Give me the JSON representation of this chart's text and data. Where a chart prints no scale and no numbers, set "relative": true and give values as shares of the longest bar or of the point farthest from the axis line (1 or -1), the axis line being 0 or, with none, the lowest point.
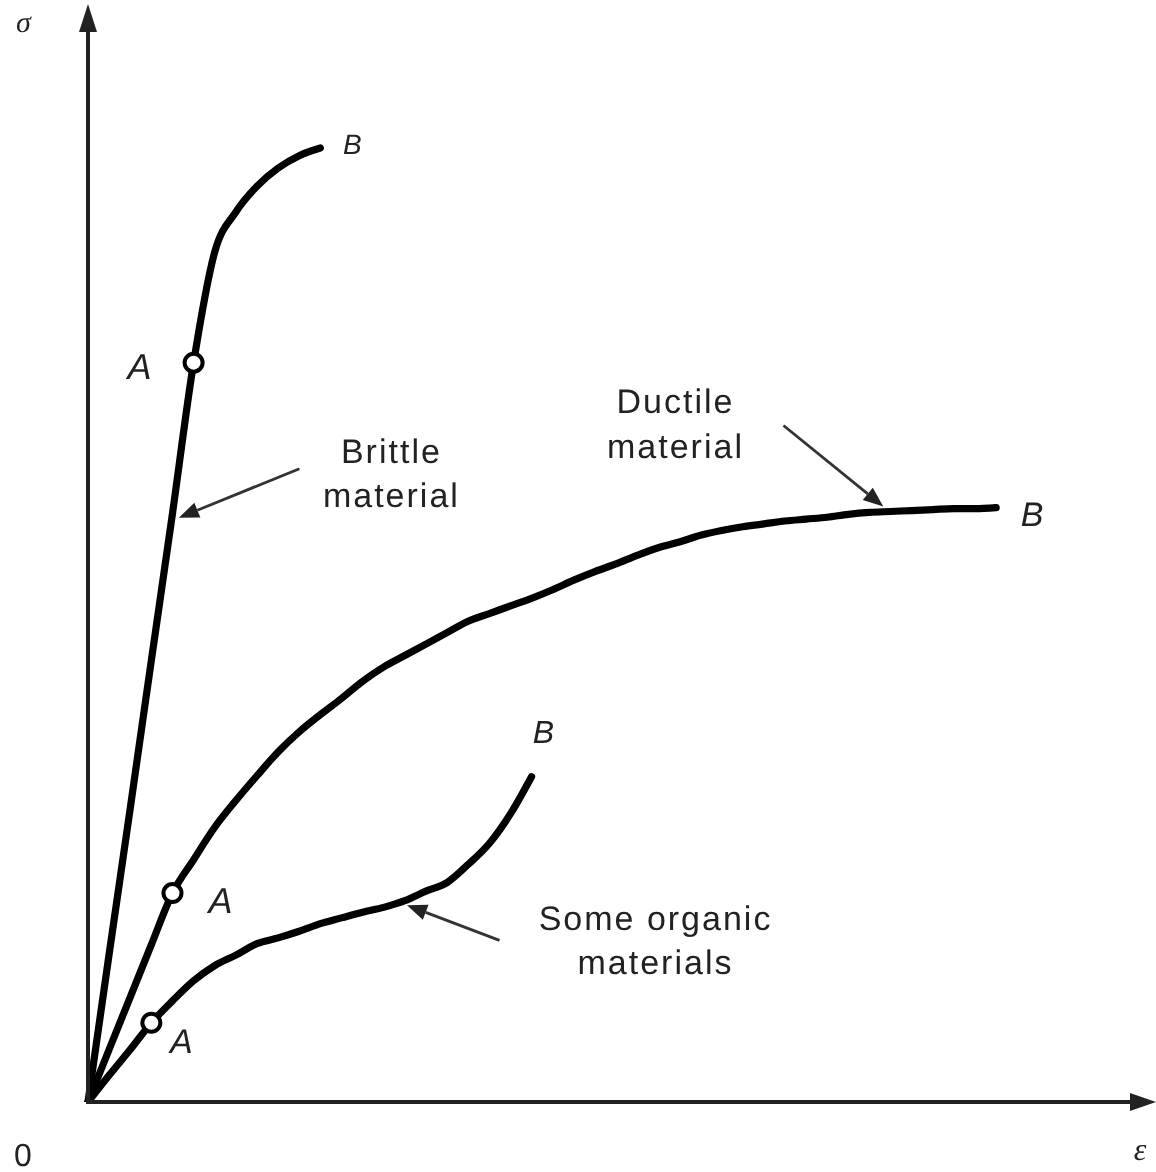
{
  "chart_data": {
    "type": "line",
    "relative": true,
    "xlabel": "ε",
    "ylabel": "σ",
    "categories": [
      null,
      null,
      null,
      null,
      null,
      null,
      null,
      null,
      null,
      null,
      null,
      null,
      null,
      null,
      null,
      null,
      null,
      null,
      null,
      null,
      null,
      null,
      null,
      null,
      null,
      null,
      null,
      null,
      null,
      null,
      null,
      null,
      null,
      null,
      null,
      null,
      null,
      null,
      null,
      null,
      null,
      null,
      null,
      null,
      null,
      null,
      null,
      null,
      null,
      null,
      null
    ],
    "series": [
      {
        "color": "#000000",
        "values": [
          0,
          0.155,
          0.308,
          0.463,
          0.617,
          0.775,
          0.891,
          0.933,
          0.96,
          0.979,
          0.992,
          1,
          null,
          null,
          null,
          null,
          null,
          null,
          null,
          null,
          null,
          null,
          null,
          null,
          null,
          null,
          null,
          null,
          null,
          null,
          null,
          null,
          null,
          null,
          null,
          null,
          null,
          null,
          null,
          null,
          null,
          null,
          null,
          null,
          null,
          null,
          null,
          null,
          null,
          null,
          null
        ]
      },
      {
        "color": "#000000",
        "values": [
          0,
          0.055,
          0.11,
          0.165,
          0.219,
          0.254,
          0.288,
          0.316,
          0.342,
          0.367,
          0.388,
          0.406,
          0.423,
          0.441,
          0.456,
          0.468,
          0.48,
          0.492,
          0.504,
          0.512,
          0.52,
          0.528,
          0.537,
          0.547,
          0.556,
          0.564,
          0.573,
          0.581,
          0.587,
          0.594,
          0.599,
          0.603,
          0.606,
          0.609,
          0.611,
          0.613,
          0.616,
          0.618,
          0.619,
          0.62,
          0.621,
          0.622,
          0.622,
          0.623,
          null,
          null,
          null,
          null,
          null,
          null,
          null
        ]
      },
      {
        "color": "#000000",
        "values": [
          0,
          0.028,
          0.055,
          0.083,
          0.106,
          0.127,
          0.143,
          0.154,
          0.166,
          0.172,
          0.179,
          0.187,
          0.193,
          0.199,
          0.204,
          0.211,
          0.221,
          0.23,
          0.249,
          0.271,
          0.302,
          0.341,
          null,
          null,
          null,
          null,
          null,
          null,
          null,
          null,
          null,
          null,
          null,
          null,
          null,
          null,
          null,
          null,
          null,
          null,
          null,
          null,
          null,
          null,
          null,
          null,
          null,
          null,
          null,
          null,
          null
        ]
      }
    ],
    "annotations": [
      "0",
      "A",
      "B",
      "Brittle material",
      "A",
      "Ductile material",
      "B",
      "A",
      "B",
      "Some organic materials"
    ]
  }
}
